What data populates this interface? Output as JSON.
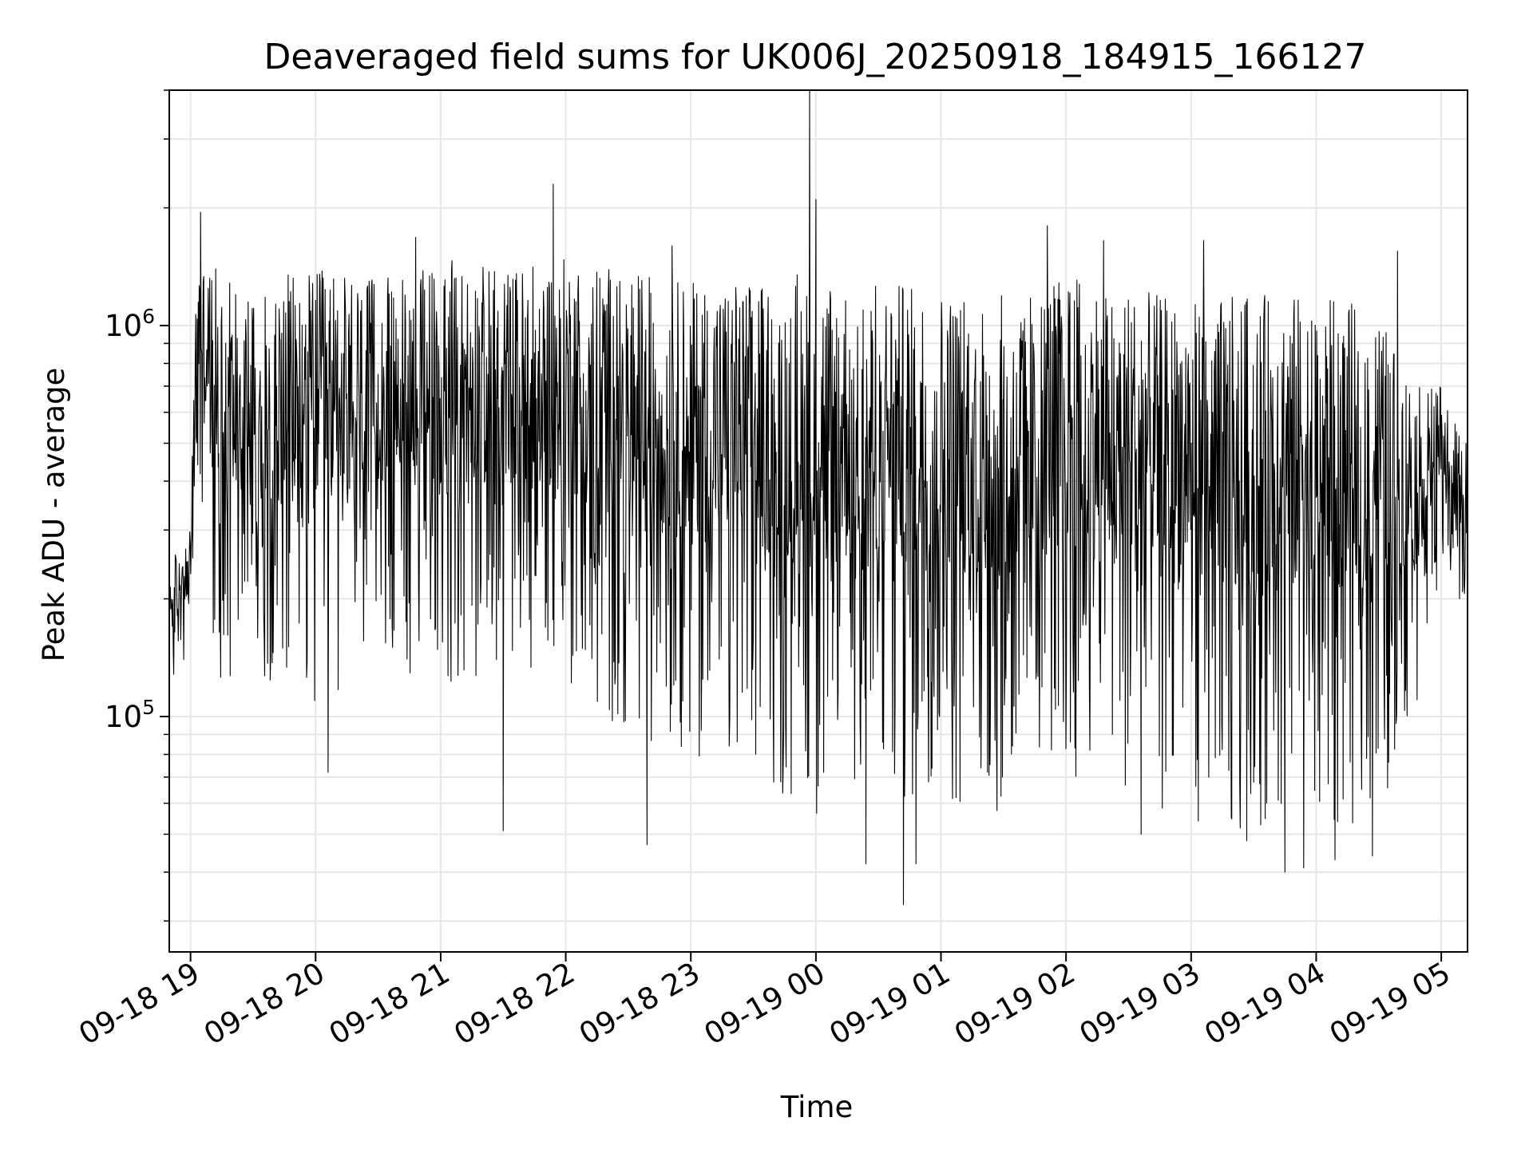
{
  "chart_data": {
    "type": "line",
    "title": "Deaveraged field sums for UK006J_20250918_184915_166127",
    "xlabel": "Time",
    "ylabel": "Peak ADU - average",
    "yscale": "log",
    "ylim": [
      25000,
      4000000
    ],
    "xlim_hours": [
      -0.17,
      10.21
    ],
    "x_reference": "09-18 19:00",
    "grid": true,
    "line_color": "#000000",
    "grid_color": "#e6e6e6",
    "x_ticks": [
      {
        "hours": 0,
        "label": "09-18 19"
      },
      {
        "hours": 1,
        "label": "09-18 20"
      },
      {
        "hours": 2,
        "label": "09-18 21"
      },
      {
        "hours": 3,
        "label": "09-18 22"
      },
      {
        "hours": 4,
        "label": "09-18 23"
      },
      {
        "hours": 5,
        "label": "09-19 00"
      },
      {
        "hours": 6,
        "label": "09-19 01"
      },
      {
        "hours": 7,
        "label": "09-19 02"
      },
      {
        "hours": 8,
        "label": "09-19 03"
      },
      {
        "hours": 9,
        "label": "09-19 04"
      },
      {
        "hours": 10,
        "label": "09-19 05"
      }
    ],
    "y_ticks": [
      {
        "value": 100000,
        "base": "10",
        "exp": "5"
      },
      {
        "value": 1000000,
        "base": "10",
        "exp": "6"
      }
    ],
    "series": [
      {
        "name": "Deaveraged field sum",
        "envelope_hours": [
          -0.17,
          0.0,
          0.05,
          0.2,
          0.5,
          1.0,
          1.5,
          2.0,
          2.5,
          3.0,
          3.5,
          4.0,
          4.5,
          5.0,
          5.5,
          6.0,
          6.5,
          7.0,
          7.5,
          8.0,
          8.5,
          9.0,
          9.5,
          9.8,
          10.0,
          10.21
        ],
        "envelope_high": [
          250000,
          300000,
          1500000,
          1400000,
          1300000,
          1400000,
          1300000,
          1500000,
          1400000,
          1500000,
          1400000,
          1300000,
          1300000,
          1400000,
          1300000,
          1250000,
          1200000,
          1350000,
          1250000,
          1150000,
          1200000,
          1200000,
          1100000,
          700000,
          700000,
          500000
        ],
        "envelope_low": [
          120000,
          150000,
          400000,
          120000,
          130000,
          100000,
          150000,
          110000,
          140000,
          120000,
          90000,
          80000,
          70000,
          55000,
          60000,
          60000,
          55000,
          70000,
          60000,
          50000,
          45000,
          48000,
          55000,
          100000,
          250000,
          150000
        ],
        "spikes": [
          {
            "hours": 0.08,
            "value": 1950000
          },
          {
            "hours": 2.9,
            "value": 2300000
          },
          {
            "hours": 4.95,
            "value": 4300000
          },
          {
            "hours": 5.0,
            "value": 2100000
          },
          {
            "hours": 6.85,
            "value": 1800000
          },
          {
            "hours": 5.7,
            "value": 33000
          },
          {
            "hours": 1.1,
            "value": 72000
          },
          {
            "hours": 2.5,
            "value": 51000
          },
          {
            "hours": 3.65,
            "value": 47000
          },
          {
            "hours": 5.4,
            "value": 42000
          },
          {
            "hours": 5.8,
            "value": 42000
          },
          {
            "hours": 7.6,
            "value": 50000
          },
          {
            "hours": 8.75,
            "value": 40000
          },
          {
            "hours": 8.9,
            "value": 41000
          },
          {
            "hours": 9.15,
            "value": 43000
          },
          {
            "hours": 9.45,
            "value": 44000
          },
          {
            "hours": 1.8,
            "value": 1680000
          },
          {
            "hours": 3.85,
            "value": 1600000
          },
          {
            "hours": 7.3,
            "value": 1650000
          },
          {
            "hours": 8.1,
            "value": 1650000
          },
          {
            "hours": 9.65,
            "value": 1550000
          }
        ]
      }
    ]
  }
}
